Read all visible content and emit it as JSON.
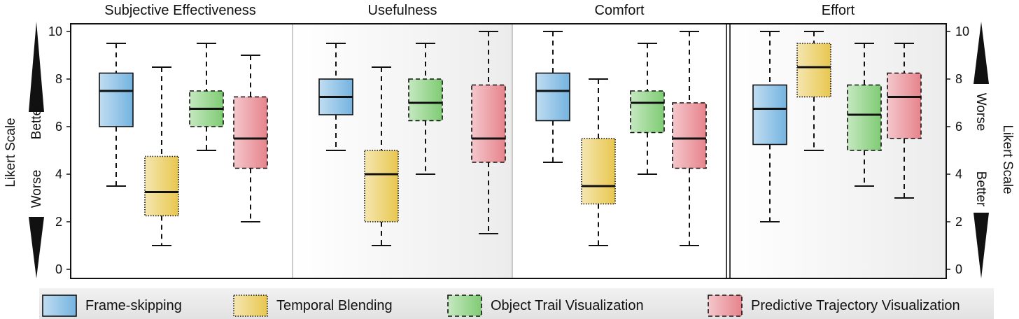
{
  "chart_data": {
    "type": "box",
    "ylabel_left": "Likert Scale",
    "ylabel_right": "Likert Scale",
    "left_direction": {
      "up": "Better",
      "down": "Worse"
    },
    "right_direction": {
      "up": "Worse",
      "down": "Better"
    },
    "ylim": [
      0,
      10
    ],
    "yticks": [
      "0",
      "2",
      "4",
      "6",
      "8",
      "10"
    ],
    "series": [
      {
        "name": "Frame-skipping",
        "color": "#74b3e0",
        "border": "solid"
      },
      {
        "name": "Temporal Blending",
        "color": "#e8c74f",
        "border": "dotted"
      },
      {
        "name": "Object Trail Visualization",
        "color": "#7fcb74",
        "border": "dashed"
      },
      {
        "name": "Predictive Trajectory Visualization",
        "color": "#e6838b",
        "border": "dashed"
      }
    ],
    "panels": [
      {
        "title": "Subjective Effectiveness",
        "shaded": false,
        "boxes": [
          {
            "min": 3.5,
            "q1": 6.0,
            "median": 7.5,
            "q3": 8.25,
            "max": 9.5
          },
          {
            "min": 1.0,
            "q1": 2.25,
            "median": 3.25,
            "q3": 4.75,
            "max": 8.5
          },
          {
            "min": 5.0,
            "q1": 6.0,
            "median": 6.75,
            "q3": 7.5,
            "max": 9.5
          },
          {
            "min": 2.0,
            "q1": 4.25,
            "median": 5.5,
            "q3": 7.25,
            "max": 9.0
          }
        ]
      },
      {
        "title": "Usefulness",
        "shaded": true,
        "boxes": [
          {
            "min": 5.0,
            "q1": 6.5,
            "median": 7.25,
            "q3": 8.0,
            "max": 9.5
          },
          {
            "min": 1.0,
            "q1": 2.0,
            "median": 4.0,
            "q3": 5.0,
            "max": 8.5
          },
          {
            "min": 4.0,
            "q1": 6.25,
            "median": 7.0,
            "q3": 8.0,
            "max": 9.5
          },
          {
            "min": 1.5,
            "q1": 4.5,
            "median": 5.5,
            "q3": 7.75,
            "max": 10.0
          }
        ]
      },
      {
        "title": "Comfort",
        "shaded": false,
        "boxes": [
          {
            "min": 4.5,
            "q1": 6.25,
            "median": 7.5,
            "q3": 8.25,
            "max": 10.0
          },
          {
            "min": 1.0,
            "q1": 2.75,
            "median": 3.5,
            "q3": 5.5,
            "max": 8.0
          },
          {
            "min": 4.0,
            "q1": 5.75,
            "median": 7.0,
            "q3": 7.5,
            "max": 9.5
          },
          {
            "min": 1.0,
            "q1": 4.25,
            "median": 5.5,
            "q3": 7.0,
            "max": 10.0
          }
        ]
      },
      {
        "title": "Effort",
        "shaded": true,
        "boxes": [
          {
            "min": 2.0,
            "q1": 5.25,
            "median": 6.75,
            "q3": 7.75,
            "max": 10.0
          },
          {
            "min": 5.0,
            "q1": 7.25,
            "median": 8.5,
            "q3": 9.5,
            "max": 10.0
          },
          {
            "min": 3.5,
            "q1": 5.0,
            "median": 6.5,
            "q3": 7.75,
            "max": 9.5
          },
          {
            "min": 3.0,
            "q1": 5.5,
            "median": 7.25,
            "q3": 8.25,
            "max": 9.5
          }
        ]
      }
    ],
    "legend_position": "bottom"
  }
}
